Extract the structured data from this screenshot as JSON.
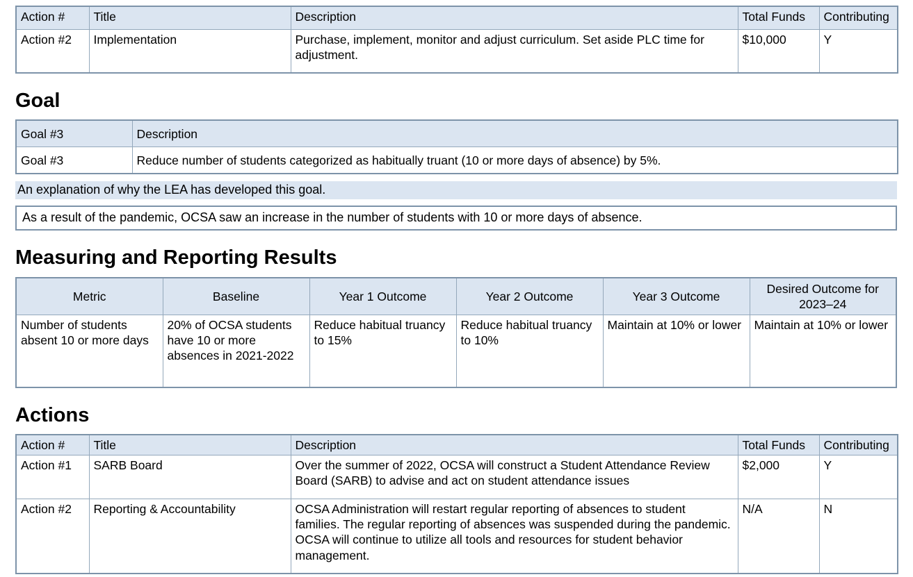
{
  "colors": {
    "header_fill": "#dbe5f1",
    "inner_border": "#94a8bb",
    "outer_border": "#7d93a9",
    "text": "#000000"
  },
  "action_table_headers": {
    "action_num": "Action #",
    "title": "Title",
    "description": "Description",
    "total_funds": "Total Funds",
    "contributing": "Contributing"
  },
  "prev_actions_table": {
    "rows": [
      {
        "action_num": "Action #2",
        "title": "Implementation",
        "description": "Purchase, implement, monitor and adjust curriculum.  Set aside PLC time for adjustment.",
        "total_funds": "$10,000",
        "contributing": "Y"
      }
    ]
  },
  "goal_section": {
    "heading": "Goal",
    "table": {
      "header": {
        "goal_num": "Goal #3",
        "description_label": "Description"
      },
      "row": {
        "goal_num": "Goal #3",
        "description": "Reduce number of students categorized as habitually truant (10 or more days of absence) by 5%."
      }
    },
    "explanation_label": "An explanation of why the LEA has developed this goal.",
    "explanation_text": "As a result of the pandemic, OCSA saw an increase in the number of students with 10 or more days of absence."
  },
  "measuring_section": {
    "heading": "Measuring and Reporting Results",
    "table": {
      "headers": [
        "Metric",
        "Baseline",
        "Year 1 Outcome",
        "Year 2 Outcome",
        "Year 3 Outcome",
        "Desired Outcome for 2023–24"
      ],
      "rows": [
        [
          "Number of students absent 10 or more days",
          "20% of OCSA students have 10 or more absences in 2021-2022",
          "Reduce habitual truancy to 15%",
          "Reduce habitual truancy to 10%",
          "Maintain at 10% or lower",
          "Maintain at 10% or lower"
        ]
      ]
    }
  },
  "actions_section": {
    "heading": "Actions",
    "rows": [
      {
        "action_num": "Action #1",
        "title": "SARB Board",
        "description": "Over the summer of 2022, OCSA will construct a Student Attendance Review Board (SARB) to advise and act on student attendance issues",
        "total_funds": "$2,000",
        "contributing": "Y"
      },
      {
        "action_num": "Action #2",
        "title": "Reporting & Accountability",
        "description": "OCSA Administration will restart regular reporting of absences to student families.  The regular reporting of absences was suspended during the pandemic. OCSA will continue to utilize all tools and resources for student behavior management.",
        "total_funds": "N/A",
        "contributing": "N"
      }
    ]
  }
}
